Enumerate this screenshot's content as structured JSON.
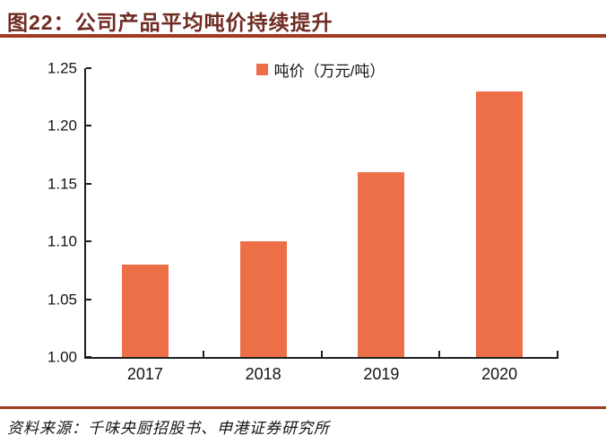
{
  "header": {
    "title": "图22：公司产品平均吨价持续提升"
  },
  "footer": {
    "source": "资料来源：千味央厨招股书、申港证券研究所"
  },
  "colors": {
    "bar": "#ED6F47",
    "rule": "#A03A20",
    "title": "#6F2B22",
    "axis": "#1F1F1F"
  },
  "chart_data": {
    "type": "bar",
    "title": "公司产品平均吨价持续提升",
    "legend": [
      "吨价（万元/吨）"
    ],
    "legend_position": "top-center",
    "categories": [
      "2017",
      "2018",
      "2019",
      "2020"
    ],
    "values": [
      1.08,
      1.1,
      1.16,
      1.23
    ],
    "xlabel": "",
    "ylabel": "",
    "ylim": [
      1.0,
      1.25
    ],
    "y_ticks": [
      "1.00",
      "1.05",
      "1.10",
      "1.15",
      "1.20",
      "1.25"
    ],
    "grid": false,
    "bar_color": "#ED6F47"
  }
}
